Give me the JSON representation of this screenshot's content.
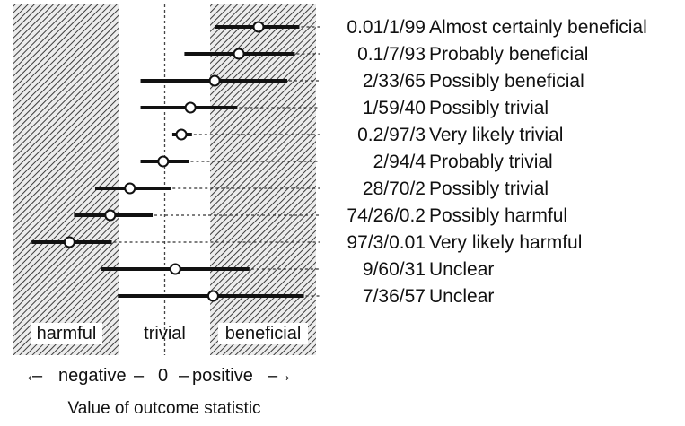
{
  "chart_data": {
    "type": "forest-interval",
    "description_labels_left_to_right": [
      "harmful",
      "trivial",
      "beneficial"
    ],
    "zones": {
      "harmful_label": "harmful",
      "trivial_label": "trivial",
      "beneficial_label": "beneficial",
      "harmful_max": -0.3,
      "beneficial_min": 0.3
    },
    "xlim": [
      -1.0,
      1.0
    ],
    "zero_label": "0",
    "axis": {
      "negative_label": "negative",
      "positive_label": "positive",
      "arrow_left": "←",
      "arrow_right": "→",
      "dash": "–"
    },
    "xlabel": "Value of outcome statistic",
    "rows": [
      {
        "chances": "0.01/1/99",
        "inference": "Almost certainly beneficial",
        "estimate": 0.62,
        "lower": 0.33,
        "upper": 0.89
      },
      {
        "chances": "0.1/7/93",
        "inference": "Probably beneficial",
        "estimate": 0.49,
        "lower": 0.13,
        "upper": 0.86
      },
      {
        "chances": "2/33/65",
        "inference": "Possibly beneficial",
        "estimate": 0.33,
        "lower": -0.16,
        "upper": 0.81
      },
      {
        "chances": "1/59/40",
        "inference": "Possibly trivial",
        "estimate": 0.17,
        "lower": -0.16,
        "upper": 0.48
      },
      {
        "chances": "0.2/97/3",
        "inference": "Very likely trivial",
        "estimate": 0.11,
        "lower": 0.05,
        "upper": 0.18
      },
      {
        "chances": "2/94/4",
        "inference": "Probably trivial",
        "estimate": -0.01,
        "lower": -0.16,
        "upper": 0.16
      },
      {
        "chances": "28/70/2",
        "inference": "Possibly trivial",
        "estimate": -0.23,
        "lower": -0.46,
        "upper": 0.04
      },
      {
        "chances": "74/26/0.2",
        "inference": "Possibly harmful",
        "estimate": -0.36,
        "lower": -0.6,
        "upper": -0.08
      },
      {
        "chances": "97/3/0.01",
        "inference": "Very likely harmful",
        "estimate": -0.63,
        "lower": -0.88,
        "upper": -0.35
      },
      {
        "chances": "9/60/31",
        "inference": "Unclear",
        "estimate": 0.07,
        "lower": -0.42,
        "upper": 0.56
      },
      {
        "chances": "7/36/57",
        "inference": "Unclear",
        "estimate": 0.32,
        "lower": -0.31,
        "upper": 0.92
      }
    ]
  }
}
